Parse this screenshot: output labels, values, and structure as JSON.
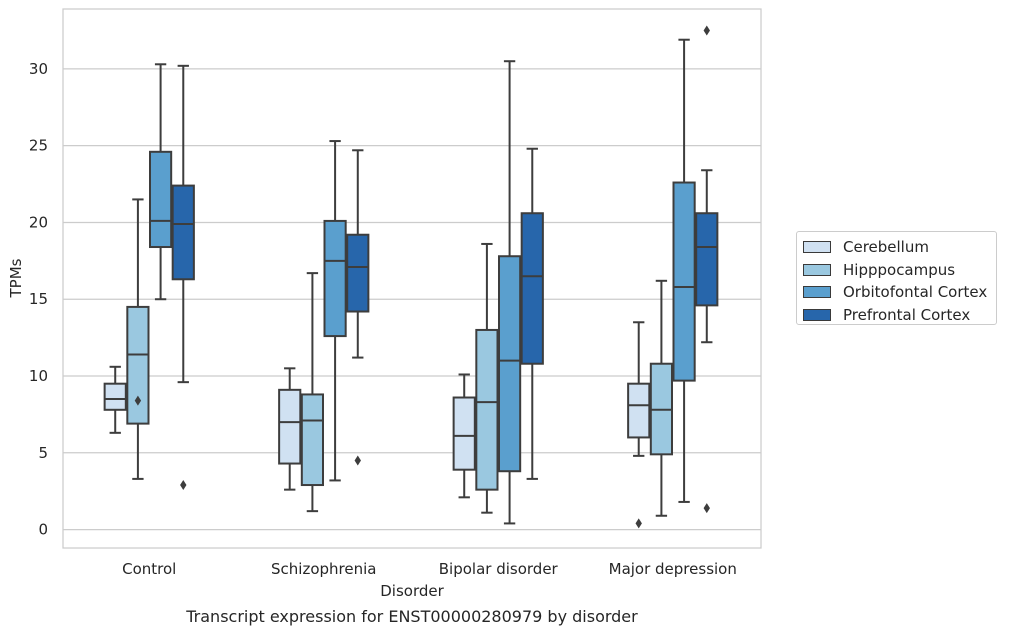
{
  "chart_data": {
    "type": "box",
    "title": "Transcript expression for ENST00000280979 by disorder",
    "xlabel": "Disorder",
    "ylabel": "TPMs",
    "ylim": [
      -1.2,
      33.9
    ],
    "yticks": [
      0,
      5,
      10,
      15,
      20,
      25,
      30
    ],
    "grid": "horizontal",
    "legend_position": "right",
    "categories": [
      "Control",
      "Schizophrenia",
      "Bipolar disorder",
      "Major depression"
    ],
    "series": [
      {
        "name": "Cerebellum",
        "color": "#d0e1f2",
        "boxes": [
          {
            "whisker_low": 6.3,
            "q1": 7.8,
            "median": 8.5,
            "q3": 9.5,
            "whisker_high": 10.6,
            "outliers": []
          },
          {
            "whisker_low": 2.6,
            "q1": 4.3,
            "median": 7.0,
            "q3": 9.1,
            "whisker_high": 10.5,
            "outliers": []
          },
          {
            "whisker_low": 2.1,
            "q1": 3.9,
            "median": 6.1,
            "q3": 8.6,
            "whisker_high": 10.1,
            "outliers": []
          },
          {
            "whisker_low": 4.8,
            "q1": 6.0,
            "median": 8.1,
            "q3": 9.5,
            "whisker_high": 13.5,
            "outliers": [
              0.4
            ]
          }
        ]
      },
      {
        "name": "Hipppocampus",
        "color": "#9ac8e0",
        "boxes": [
          {
            "whisker_low": 3.3,
            "q1": 6.9,
            "median": 11.4,
            "q3": 14.5,
            "whisker_high": 21.5,
            "outliers": [
              8.4
            ]
          },
          {
            "whisker_low": 1.2,
            "q1": 2.9,
            "median": 7.1,
            "q3": 8.8,
            "whisker_high": 16.7,
            "outliers": []
          },
          {
            "whisker_low": 1.1,
            "q1": 2.6,
            "median": 8.3,
            "q3": 13.0,
            "whisker_high": 18.6,
            "outliers": []
          },
          {
            "whisker_low": 0.9,
            "q1": 4.9,
            "median": 7.8,
            "q3": 10.8,
            "whisker_high": 16.2,
            "outliers": []
          }
        ]
      },
      {
        "name": "Orbitofontal Cortex",
        "color": "#5a9fce",
        "boxes": [
          {
            "whisker_low": 15.0,
            "q1": 18.4,
            "median": 20.1,
            "q3": 24.6,
            "whisker_high": 30.3,
            "outliers": []
          },
          {
            "whisker_low": 3.2,
            "q1": 12.6,
            "median": 17.5,
            "q3": 20.1,
            "whisker_high": 25.3,
            "outliers": []
          },
          {
            "whisker_low": 0.4,
            "q1": 3.8,
            "median": 11.0,
            "q3": 17.8,
            "whisker_high": 30.5,
            "outliers": []
          },
          {
            "whisker_low": 1.8,
            "q1": 9.7,
            "median": 15.8,
            "q3": 22.6,
            "whisker_high": 31.9,
            "outliers": []
          }
        ]
      },
      {
        "name": "Prefrontal Cortex",
        "color": "#2766ab",
        "boxes": [
          {
            "whisker_low": 9.6,
            "q1": 16.3,
            "median": 19.9,
            "q3": 22.4,
            "whisker_high": 30.2,
            "outliers": [
              2.9
            ]
          },
          {
            "whisker_low": 11.2,
            "q1": 14.2,
            "median": 17.1,
            "q3": 19.2,
            "whisker_high": 24.7,
            "outliers": [
              4.5
            ]
          },
          {
            "whisker_low": 3.3,
            "q1": 10.8,
            "median": 16.5,
            "q3": 20.6,
            "whisker_high": 24.8,
            "outliers": []
          },
          {
            "whisker_low": 12.2,
            "q1": 14.6,
            "median": 18.4,
            "q3": 20.6,
            "whisker_high": 23.4,
            "outliers": [
              1.4,
              32.5
            ]
          }
        ]
      }
    ]
  }
}
